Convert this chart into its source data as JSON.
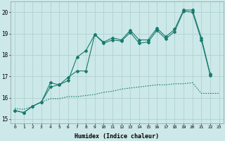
{
  "xlabel": "Humidex (Indice chaleur)",
  "bg_color": "#cce8e8",
  "grid_color": "#aacfcf",
  "line_color": "#1a7a6e",
  "xlim": [
    -0.5,
    23.5
  ],
  "ylim": [
    14.8,
    20.5
  ],
  "xticks": [
    0,
    1,
    2,
    3,
    4,
    5,
    6,
    7,
    8,
    9,
    10,
    11,
    12,
    13,
    14,
    15,
    16,
    17,
    18,
    19,
    20,
    21,
    22,
    23
  ],
  "yticks": [
    15,
    16,
    17,
    18,
    19,
    20
  ],
  "x": [
    0,
    1,
    2,
    3,
    4,
    5,
    6,
    7,
    8,
    9,
    10,
    11,
    12,
    13,
    14,
    15,
    16,
    17,
    18,
    19,
    20,
    21,
    22,
    23
  ],
  "line1": [
    15.4,
    15.3,
    15.6,
    15.8,
    16.7,
    16.6,
    16.8,
    17.9,
    18.2,
    18.95,
    18.6,
    18.8,
    18.7,
    19.15,
    18.7,
    18.7,
    19.25,
    18.85,
    19.2,
    20.1,
    20.1,
    18.8,
    17.1,
    null
  ],
  "line2": [
    15.4,
    15.3,
    15.6,
    15.8,
    16.5,
    16.6,
    16.95,
    17.25,
    17.25,
    18.95,
    18.55,
    18.7,
    18.65,
    19.05,
    18.55,
    18.6,
    19.15,
    18.75,
    19.1,
    20.05,
    20.0,
    18.7,
    17.05,
    null
  ],
  "line3": [
    15.5,
    15.45,
    15.6,
    15.8,
    15.95,
    15.95,
    16.05,
    16.05,
    16.1,
    16.15,
    16.25,
    16.3,
    16.4,
    16.45,
    16.5,
    16.55,
    16.6,
    16.6,
    16.65,
    16.65,
    16.7,
    16.2,
    16.2,
    16.2
  ]
}
